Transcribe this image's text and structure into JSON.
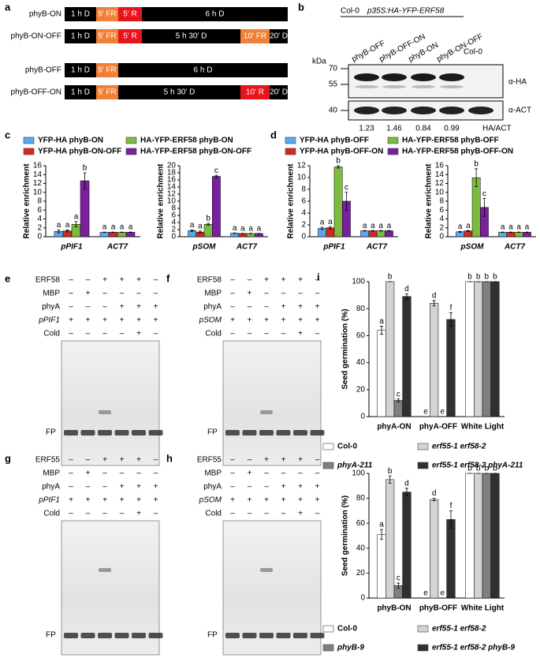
{
  "schematic": {
    "label": "a",
    "rows": [
      {
        "name": "phyB-ON",
        "segments": [
          {
            "text": "1 h D",
            "color": "#000000"
          },
          {
            "text": "5' FR",
            "color": "#f08038"
          },
          {
            "text": "5' R",
            "color": "#e8141c"
          },
          {
            "text": "6 h D",
            "color": "#000000"
          }
        ]
      },
      {
        "name": "phyB-ON-OFF",
        "segments": [
          {
            "text": "1 h D",
            "color": "#000000"
          },
          {
            "text": "5' FR",
            "color": "#f08038"
          },
          {
            "text": "5' R",
            "color": "#e8141c"
          },
          {
            "text": "5 h 30' D",
            "color": "#000000"
          },
          {
            "text": "10' FR",
            "color": "#f08038"
          },
          {
            "text": "20' D",
            "color": "#000000"
          }
        ]
      },
      {
        "name": "phyB-OFF",
        "segments": [
          {
            "text": "1 h D",
            "color": "#000000"
          },
          {
            "text": "5' FR",
            "color": "#f08038"
          },
          {
            "text": "6 h D",
            "color": "#000000"
          }
        ]
      },
      {
        "name": "phyB-OFF-ON",
        "segments": [
          {
            "text": "1 h D",
            "color": "#000000"
          },
          {
            "text": "5' FR",
            "color": "#f08038"
          },
          {
            "text": "5 h 30' D",
            "color": "#000000"
          },
          {
            "text": "10' R",
            "color": "#e8141c"
          },
          {
            "text": "20' D",
            "color": "#000000"
          }
        ]
      }
    ]
  },
  "blot": {
    "label": "b",
    "line_label": "Col-0",
    "transgene": "p35S:HA-YFP-ERF58",
    "lanes": [
      "phyB-OFF",
      "phyB-OFF-ON",
      "phyB-ON",
      "phyB-ON-OFF"
    ],
    "control": "Col-0",
    "unit": "kDa",
    "markers": [
      70,
      55,
      40
    ],
    "antibodies": [
      "α-HA",
      "α-ACT"
    ],
    "ratios": [
      "1.23",
      "1.46",
      "0.84",
      "0.99"
    ],
    "ratio_label": "HA/ACT"
  },
  "chart_data": [
    {
      "type": "bar",
      "label": "c",
      "series": [
        {
          "name": "YFP-HA phyB-ON",
          "color": "#5aa9f0"
        },
        {
          "name": "YFP-HA phyB-ON-OFF",
          "color": "#d3281f"
        },
        {
          "name": "HA-YFP-ERF58 phyB-ON",
          "color": "#7cbb3f"
        },
        {
          "name": "HA-YFP-ERF58 phyB-ON-OFF",
          "color": "#7a1fa0"
        }
      ],
      "subplots": [
        {
          "ylabel": "Relative enrichment",
          "categories": [
            "pPIF1",
            "ACT7"
          ],
          "ylim": [
            0,
            16
          ],
          "yticks": [
            0,
            2,
            4,
            6,
            8,
            10,
            12,
            14,
            16
          ],
          "series": [
            {
              "values": [
                1.2,
                1.0
              ],
              "errors": [
                0.3,
                0.05
              ],
              "letters": [
                "a",
                "a"
              ]
            },
            {
              "values": [
                1.3,
                1.0
              ],
              "errors": [
                0.2,
                0.05
              ],
              "letters": [
                "a",
                "a"
              ]
            },
            {
              "values": [
                2.8,
                1.0
              ],
              "errors": [
                0.6,
                0.05
              ],
              "letters": [
                "a",
                "a"
              ]
            },
            {
              "values": [
                12.6,
                1.0
              ],
              "errors": [
                1.8,
                0.05
              ],
              "letters": [
                "b",
                "a"
              ]
            }
          ]
        },
        {
          "ylabel": "Relative enrichment",
          "categories": [
            "pSOM",
            "ACT7"
          ],
          "ylim": [
            0,
            20
          ],
          "yticks": [
            0,
            2,
            4,
            6,
            8,
            10,
            12,
            14,
            16,
            18,
            20
          ],
          "series": [
            {
              "values": [
                1.7,
                1.0
              ],
              "errors": [
                0.2,
                0.05
              ],
              "letters": [
                "a",
                "a"
              ]
            },
            {
              "values": [
                1.3,
                0.9
              ],
              "errors": [
                0.3,
                0.05
              ],
              "letters": [
                "a",
                "a"
              ]
            },
            {
              "values": [
                3.5,
                0.9
              ],
              "errors": [
                0.3,
                0.05
              ],
              "letters": [
                "b",
                "a"
              ]
            },
            {
              "values": [
                17.0,
                0.9
              ],
              "errors": [
                0.3,
                0.05
              ],
              "letters": [
                "c",
                "a"
              ]
            }
          ]
        }
      ]
    },
    {
      "type": "bar",
      "label": "d",
      "series": [
        {
          "name": "YFP-HA phyB-OFF",
          "color": "#5aa9f0"
        },
        {
          "name": "YFP-HA phyB-OFF-ON",
          "color": "#d3281f"
        },
        {
          "name": "HA-YFP-ERF58 phyB-OFF",
          "color": "#7cbb3f"
        },
        {
          "name": "HA-YFP-ERF58 phyB-OFF-ON",
          "color": "#7a1fa0"
        }
      ],
      "subplots": [
        {
          "ylabel": "Relative enrichment",
          "categories": [
            "pPIF1",
            "ACT7"
          ],
          "ylim": [
            0,
            12
          ],
          "yticks": [
            0,
            2,
            4,
            6,
            8,
            10,
            12
          ],
          "series": [
            {
              "values": [
                1.4,
                1.0
              ],
              "errors": [
                0.2,
                0.05
              ],
              "letters": [
                "a",
                "a"
              ]
            },
            {
              "values": [
                1.5,
                1.0
              ],
              "errors": [
                0.2,
                0.05
              ],
              "letters": [
                "a",
                "a"
              ]
            },
            {
              "values": [
                11.8,
                1.0
              ],
              "errors": [
                0.2,
                0.05
              ],
              "letters": [
                "b",
                "a"
              ]
            },
            {
              "values": [
                6.0,
                1.0
              ],
              "errors": [
                1.5,
                0.05
              ],
              "letters": [
                "c",
                "a"
              ]
            }
          ]
        },
        {
          "ylabel": "Relative enrichment",
          "categories": [
            "pSOM",
            "ACT7"
          ],
          "ylim": [
            0,
            16
          ],
          "yticks": [
            0,
            2,
            4,
            6,
            8,
            10,
            12,
            14,
            16
          ],
          "series": [
            {
              "values": [
                1.1,
                1.0
              ],
              "errors": [
                0.1,
                0.05
              ],
              "letters": [
                "a",
                "a"
              ]
            },
            {
              "values": [
                1.3,
                1.0
              ],
              "errors": [
                0.1,
                0.05
              ],
              "letters": [
                "a",
                "a"
              ]
            },
            {
              "values": [
                13.3,
                1.0
              ],
              "errors": [
                2.0,
                0.05
              ],
              "letters": [
                "b",
                "a"
              ]
            },
            {
              "values": [
                6.6,
                1.0
              ],
              "errors": [
                2.0,
                0.05
              ],
              "letters": [
                "c",
                "a"
              ]
            }
          ]
        }
      ]
    },
    {
      "type": "bar",
      "label": "i",
      "series": [
        {
          "name": "Col-0",
          "color": "#ffffff"
        },
        {
          "name": "erf55-1 erf58-2",
          "color": "#d3d3d3"
        },
        {
          "name": "phyA-211",
          "color": "#7f7f7f"
        },
        {
          "name": "erf55-1 erf58-2 phyA-211",
          "color": "#303030"
        }
      ],
      "subplots": [
        {
          "ylabel": "Seed germination (%)",
          "categories": [
            "phyA-ON",
            "phyA-OFF",
            "White Light"
          ],
          "ylim": [
            0,
            100
          ],
          "yticks": [
            0,
            20,
            40,
            60,
            80,
            100
          ],
          "series": [
            {
              "values": [
                64,
                0,
                100
              ],
              "errors": [
                3,
                0,
                0
              ],
              "letters": [
                "a",
                "e",
                "b"
              ]
            },
            {
              "values": [
                100,
                84,
                100
              ],
              "errors": [
                0,
                2,
                0
              ],
              "letters": [
                "b",
                "d",
                "b"
              ]
            },
            {
              "values": [
                12,
                0,
                100
              ],
              "errors": [
                1,
                0,
                0
              ],
              "letters": [
                "c",
                "e",
                "b"
              ]
            },
            {
              "values": [
                89,
                72,
                100
              ],
              "errors": [
                2,
                5,
                0
              ],
              "letters": [
                "d",
                "f",
                "b"
              ]
            }
          ]
        }
      ]
    },
    {
      "type": "bar",
      "label": "j",
      "series": [
        {
          "name": "Col-0",
          "color": "#ffffff"
        },
        {
          "name": "erf55-1 erf58-2",
          "color": "#d3d3d3"
        },
        {
          "name": "phyB-9",
          "color": "#7f7f7f"
        },
        {
          "name": "erf55-1 erf58-2 phyB-9",
          "color": "#303030"
        }
      ],
      "subplots": [
        {
          "ylabel": "Seed germination (%)",
          "categories": [
            "phyB-ON",
            "phyB-OFF",
            "White Light"
          ],
          "ylim": [
            0,
            100
          ],
          "yticks": [
            0,
            20,
            40,
            60,
            80,
            100
          ],
          "series": [
            {
              "values": [
                51,
                0,
                100
              ],
              "errors": [
                4,
                0,
                0
              ],
              "letters": [
                "a",
                "e",
                "b"
              ]
            },
            {
              "values": [
                95,
                79,
                100
              ],
              "errors": [
                3,
                1,
                0
              ],
              "letters": [
                "b",
                "d",
                "b"
              ]
            },
            {
              "values": [
                10,
                0,
                100
              ],
              "errors": [
                2,
                0,
                0
              ],
              "letters": [
                "c",
                "e",
                "b"
              ]
            },
            {
              "values": [
                85,
                63,
                100
              ],
              "errors": [
                3,
                7,
                0
              ],
              "letters": [
                "d",
                "f",
                "b"
              ]
            }
          ]
        }
      ]
    }
  ],
  "gels": [
    {
      "label": "e",
      "marker": "FP",
      "rows": [
        {
          "name": "ERF58",
          "signs": [
            "–",
            "–",
            "+",
            "+",
            "+",
            "–"
          ]
        },
        {
          "name": "MBP",
          "signs": [
            "–",
            "+",
            "–",
            "–",
            "–",
            "–"
          ]
        },
        {
          "name": "phyA",
          "signs": [
            "–",
            "–",
            "–",
            "+",
            "+",
            "+"
          ]
        },
        {
          "name": "pPIF1",
          "signs": [
            "+",
            "+",
            "+",
            "+",
            "+",
            "+"
          ]
        },
        {
          "name": "Cold",
          "signs": [
            "–",
            "–",
            "–",
            "–",
            "+",
            "–"
          ]
        }
      ]
    },
    {
      "label": "f",
      "marker": "FP",
      "rows": [
        {
          "name": "ERF58",
          "signs": [
            "–",
            "–",
            "+",
            "+",
            "+",
            "–"
          ]
        },
        {
          "name": "MBP",
          "signs": [
            "–",
            "+",
            "–",
            "–",
            "–",
            "–"
          ]
        },
        {
          "name": "phyA",
          "signs": [
            "–",
            "–",
            "–",
            "+",
            "+",
            "+"
          ]
        },
        {
          "name": "pSOM",
          "signs": [
            "+",
            "+",
            "+",
            "+",
            "+",
            "+"
          ]
        },
        {
          "name": "Cold",
          "signs": [
            "–",
            "–",
            "–",
            "–",
            "+",
            "–"
          ]
        }
      ]
    },
    {
      "label": "g",
      "marker": "FP",
      "rows": [
        {
          "name": "ERF55",
          "signs": [
            "–",
            "–",
            "+",
            "+",
            "+",
            "–"
          ]
        },
        {
          "name": "MBP",
          "signs": [
            "–",
            "+",
            "–",
            "–",
            "–",
            "–"
          ]
        },
        {
          "name": "phyA",
          "signs": [
            "–",
            "–",
            "–",
            "+",
            "+",
            "+"
          ]
        },
        {
          "name": "pPIF1",
          "signs": [
            "+",
            "+",
            "+",
            "+",
            "+",
            "+"
          ]
        },
        {
          "name": "Cold",
          "signs": [
            "–",
            "–",
            "–",
            "–",
            "+",
            "–"
          ]
        }
      ]
    },
    {
      "label": "h",
      "marker": "FP",
      "rows": [
        {
          "name": "ERF55",
          "signs": [
            "–",
            "–",
            "+",
            "+",
            "+",
            "–"
          ]
        },
        {
          "name": "MBP",
          "signs": [
            "–",
            "+",
            "–",
            "–",
            "–",
            "–"
          ]
        },
        {
          "name": "phyA",
          "signs": [
            "–",
            "–",
            "–",
            "+",
            "+",
            "+"
          ]
        },
        {
          "name": "pSOM",
          "signs": [
            "+",
            "+",
            "+",
            "+",
            "+",
            "+"
          ]
        },
        {
          "name": "Cold",
          "signs": [
            "–",
            "–",
            "–",
            "–",
            "+",
            "–"
          ]
        }
      ]
    }
  ]
}
